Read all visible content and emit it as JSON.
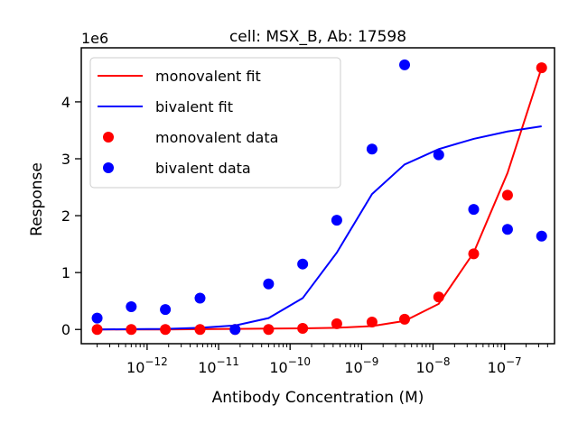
{
  "chart_data": {
    "type": "scatter",
    "title": "cell: MSX_B, Ab: 17598",
    "xlabel": "Antibody Concentration (M)",
    "ylabel": "Response",
    "y_offset_label": "1e6",
    "xscale": "log",
    "xlim": [
      1.2e-13,
      5e-07
    ],
    "ylim": [
      -0.25,
      4.95
    ],
    "y_multiplier": 1000000,
    "x_ticks": [
      {
        "value": 1e-12,
        "base": "10",
        "exp": "−12"
      },
      {
        "value": 1e-11,
        "base": "10",
        "exp": "−11"
      },
      {
        "value": 1e-10,
        "base": "10",
        "exp": "−10"
      },
      {
        "value": 1e-09,
        "base": "10",
        "exp": "−9"
      },
      {
        "value": 1e-08,
        "base": "10",
        "exp": "−8"
      },
      {
        "value": 1e-07,
        "base": "10",
        "exp": "−7"
      }
    ],
    "y_ticks": [
      {
        "value": 0,
        "label": "0"
      },
      {
        "value": 1,
        "label": "1"
      },
      {
        "value": 2,
        "label": "2"
      },
      {
        "value": 3,
        "label": "3"
      },
      {
        "value": 4,
        "label": "4"
      }
    ],
    "legend_position": "upper-left",
    "lines": [
      {
        "name": "monovalent fit",
        "color": "#ff0000",
        "x": [
          2e-13,
          6e-13,
          1.8e-12,
          5.5e-12,
          1.7e-11,
          5e-11,
          1.5e-10,
          4.5e-10,
          1.4e-09,
          4e-09,
          1.2e-08,
          3.7e-08,
          1.1e-07,
          3.3e-07
        ],
        "y": [
          0,
          0,
          0,
          0.005,
          0.01,
          0.015,
          0.02,
          0.03,
          0.06,
          0.15,
          0.45,
          1.35,
          2.75,
          4.6
        ]
      },
      {
        "name": "bivalent fit",
        "color": "#0000ff",
        "x": [
          2e-13,
          6e-13,
          1.8e-12,
          5.5e-12,
          1.7e-11,
          5e-11,
          1.5e-10,
          4.5e-10,
          1.4e-09,
          4e-09,
          1.2e-08,
          3.7e-08,
          1.1e-07,
          3.3e-07
        ],
        "y": [
          0,
          0.005,
          0.01,
          0.03,
          0.07,
          0.2,
          0.55,
          1.35,
          2.38,
          2.9,
          3.17,
          3.35,
          3.48,
          3.57
        ]
      }
    ],
    "scatter": [
      {
        "name": "monovalent data",
        "color": "#ff0000",
        "x": [
          2e-13,
          6e-13,
          1.8e-12,
          5.5e-12,
          1.7e-11,
          5e-11,
          1.5e-10,
          4.5e-10,
          1.4e-09,
          4e-09,
          1.2e-08,
          3.7e-08,
          1.1e-07,
          3.3e-07
        ],
        "y": [
          0,
          0,
          0,
          0,
          0,
          0,
          0.02,
          0.1,
          0.13,
          0.18,
          0.57,
          1.33,
          2.36,
          4.6
        ]
      },
      {
        "name": "bivalent data",
        "color": "#0000ff",
        "x": [
          2e-13,
          6e-13,
          1.8e-12,
          5.5e-12,
          1.7e-11,
          5e-11,
          1.5e-10,
          4.5e-10,
          1.4e-09,
          4e-09,
          1.2e-08,
          3.7e-08,
          1.1e-07,
          3.3e-07
        ],
        "y": [
          0.2,
          0.4,
          0.35,
          0.55,
          0,
          0.8,
          1.15,
          1.92,
          3.17,
          4.65,
          3.07,
          2.11,
          1.76,
          1.64
        ]
      }
    ]
  }
}
